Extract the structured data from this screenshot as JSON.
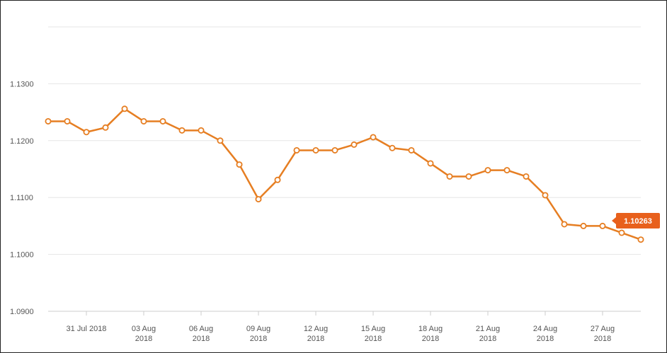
{
  "colors": {
    "series": "#e67e22",
    "marker_fill": "#ffffff",
    "callout_bg": "#e8601c",
    "callout_text": "#ffffff",
    "gridline": "#e6e6e6",
    "axis": "#cccccc",
    "tick_label": "#555555"
  },
  "chart_data": {
    "type": "line",
    "title": "",
    "xlabel": "",
    "ylabel": "",
    "ylim": [
      1.09,
      1.14
    ],
    "grid": true,
    "y_ticks": [
      {
        "value": 1.13,
        "label": "1.1300"
      },
      {
        "value": 1.12,
        "label": "1.1200"
      },
      {
        "value": 1.11,
        "label": "1.1100"
      },
      {
        "value": 1.1,
        "label": "1.1000"
      },
      {
        "value": 1.09,
        "label": "1.0900"
      }
    ],
    "x_ticks": [
      {
        "date": "2018-07-31",
        "lines": [
          "31 Jul 2018"
        ]
      },
      {
        "date": "2018-08-03",
        "lines": [
          "03 Aug",
          "2018"
        ]
      },
      {
        "date": "2018-08-06",
        "lines": [
          "06 Aug",
          "2018"
        ]
      },
      {
        "date": "2018-08-09",
        "lines": [
          "09 Aug",
          "2018"
        ]
      },
      {
        "date": "2018-08-12",
        "lines": [
          "12 Aug",
          "2018"
        ]
      },
      {
        "date": "2018-08-15",
        "lines": [
          "15 Aug",
          "2018"
        ]
      },
      {
        "date": "2018-08-18",
        "lines": [
          "18 Aug",
          "2018"
        ]
      },
      {
        "date": "2018-08-21",
        "lines": [
          "21 Aug",
          "2018"
        ]
      },
      {
        "date": "2018-08-24",
        "lines": [
          "24 Aug",
          "2018"
        ]
      },
      {
        "date": "2018-08-27",
        "lines": [
          "27 Aug",
          "2018"
        ]
      }
    ],
    "x_range": [
      "2018-07-29",
      "2018-08-29"
    ],
    "series": [
      {
        "points": [
          {
            "x": "2018-07-29",
            "y": 1.1234
          },
          {
            "x": "2018-07-30",
            "y": 1.1234
          },
          {
            "x": "2018-07-31",
            "y": 1.1215
          },
          {
            "x": "2018-08-01",
            "y": 1.1223
          },
          {
            "x": "2018-08-02",
            "y": 1.1256
          },
          {
            "x": "2018-08-03",
            "y": 1.1234
          },
          {
            "x": "2018-08-04",
            "y": 1.1234
          },
          {
            "x": "2018-08-05",
            "y": 1.1218
          },
          {
            "x": "2018-08-06",
            "y": 1.1218
          },
          {
            "x": "2018-08-07",
            "y": 1.12
          },
          {
            "x": "2018-08-08",
            "y": 1.1158
          },
          {
            "x": "2018-08-09",
            "y": 1.1097
          },
          {
            "x": "2018-08-10",
            "y": 1.1131
          },
          {
            "x": "2018-08-11",
            "y": 1.1183
          },
          {
            "x": "2018-08-12",
            "y": 1.1183
          },
          {
            "x": "2018-08-13",
            "y": 1.1183
          },
          {
            "x": "2018-08-14",
            "y": 1.1193
          },
          {
            "x": "2018-08-15",
            "y": 1.1206
          },
          {
            "x": "2018-08-16",
            "y": 1.1187
          },
          {
            "x": "2018-08-17",
            "y": 1.1183
          },
          {
            "x": "2018-08-18",
            "y": 1.116
          },
          {
            "x": "2018-08-19",
            "y": 1.1137
          },
          {
            "x": "2018-08-20",
            "y": 1.1137
          },
          {
            "x": "2018-08-21",
            "y": 1.1148
          },
          {
            "x": "2018-08-22",
            "y": 1.1148
          },
          {
            "x": "2018-08-23",
            "y": 1.1137
          },
          {
            "x": "2018-08-24",
            "y": 1.1104
          },
          {
            "x": "2018-08-25",
            "y": 1.1053
          },
          {
            "x": "2018-08-26",
            "y": 1.105
          },
          {
            "x": "2018-08-27",
            "y": 1.105
          },
          {
            "x": "2018-08-28",
            "y": 1.1038
          },
          {
            "x": "2018-08-29",
            "y": 1.1026
          }
        ]
      }
    ],
    "last_value_label": "1.10263",
    "last_value": 1.10263
  }
}
